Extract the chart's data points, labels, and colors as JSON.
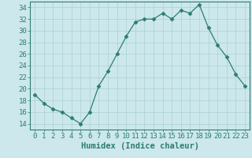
{
  "x": [
    0,
    1,
    2,
    3,
    4,
    5,
    6,
    7,
    8,
    9,
    10,
    11,
    12,
    13,
    14,
    15,
    16,
    17,
    18,
    19,
    20,
    21,
    22,
    23
  ],
  "y": [
    19,
    17.5,
    16.5,
    16,
    15,
    14,
    16,
    20.5,
    23,
    26,
    29,
    31.5,
    32,
    32,
    33,
    32,
    33.5,
    33,
    34.5,
    30.5,
    27.5,
    25.5,
    22.5,
    20.5
  ],
  "line_color": "#2e7d6e",
  "marker": "D",
  "marker_size": 2.5,
  "bg_color": "#cce8ec",
  "grid_color": "#aad0d5",
  "xlabel": "Humidex (Indice chaleur)",
  "xlim": [
    -0.5,
    23.5
  ],
  "ylim": [
    13,
    35
  ],
  "yticks": [
    14,
    16,
    18,
    20,
    22,
    24,
    26,
    28,
    30,
    32,
    34
  ],
  "xticks": [
    0,
    1,
    2,
    3,
    4,
    5,
    6,
    7,
    8,
    9,
    10,
    11,
    12,
    13,
    14,
    15,
    16,
    17,
    18,
    19,
    20,
    21,
    22,
    23
  ],
  "tick_label_fontsize": 6.5,
  "xlabel_fontsize": 7.5,
  "spine_color": "#2e7d6e",
  "tick_color": "#2e7d6e"
}
